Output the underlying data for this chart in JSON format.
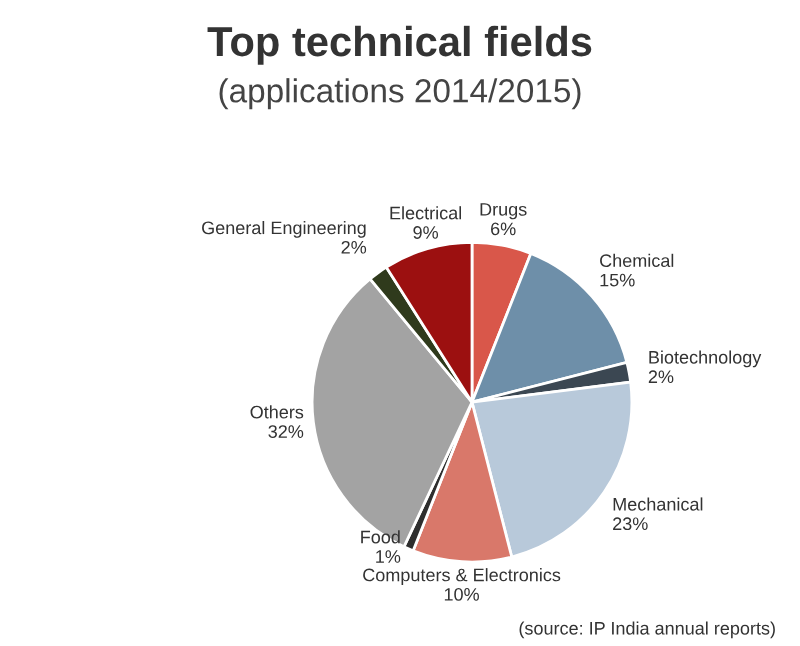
{
  "chart_data": {
    "type": "pie",
    "title": "Top technical fields",
    "subtitle": "(applications 2014/2015)",
    "categories": [
      "Drugs",
      "Chemical",
      "Biotechnology",
      "Mechanical",
      "Computers & Electronics",
      "Food",
      "Others",
      "General Engineering",
      "Electrical"
    ],
    "values": [
      6,
      15,
      2,
      23,
      10,
      1,
      32,
      2,
      9
    ],
    "value_labels": [
      "6%",
      "15%",
      "2%",
      "23%",
      "10%",
      "1%",
      "32%",
      "2%",
      "9%"
    ],
    "colors": [
      "#d9574a",
      "#6e8fa9",
      "#3b4752",
      "#b8c9da",
      "#d9786a",
      "#2e2e2e",
      "#a3a3a3",
      "#2f3a1c",
      "#9c1010"
    ],
    "annotations": [
      "(source: IP India annual reports)"
    ]
  }
}
